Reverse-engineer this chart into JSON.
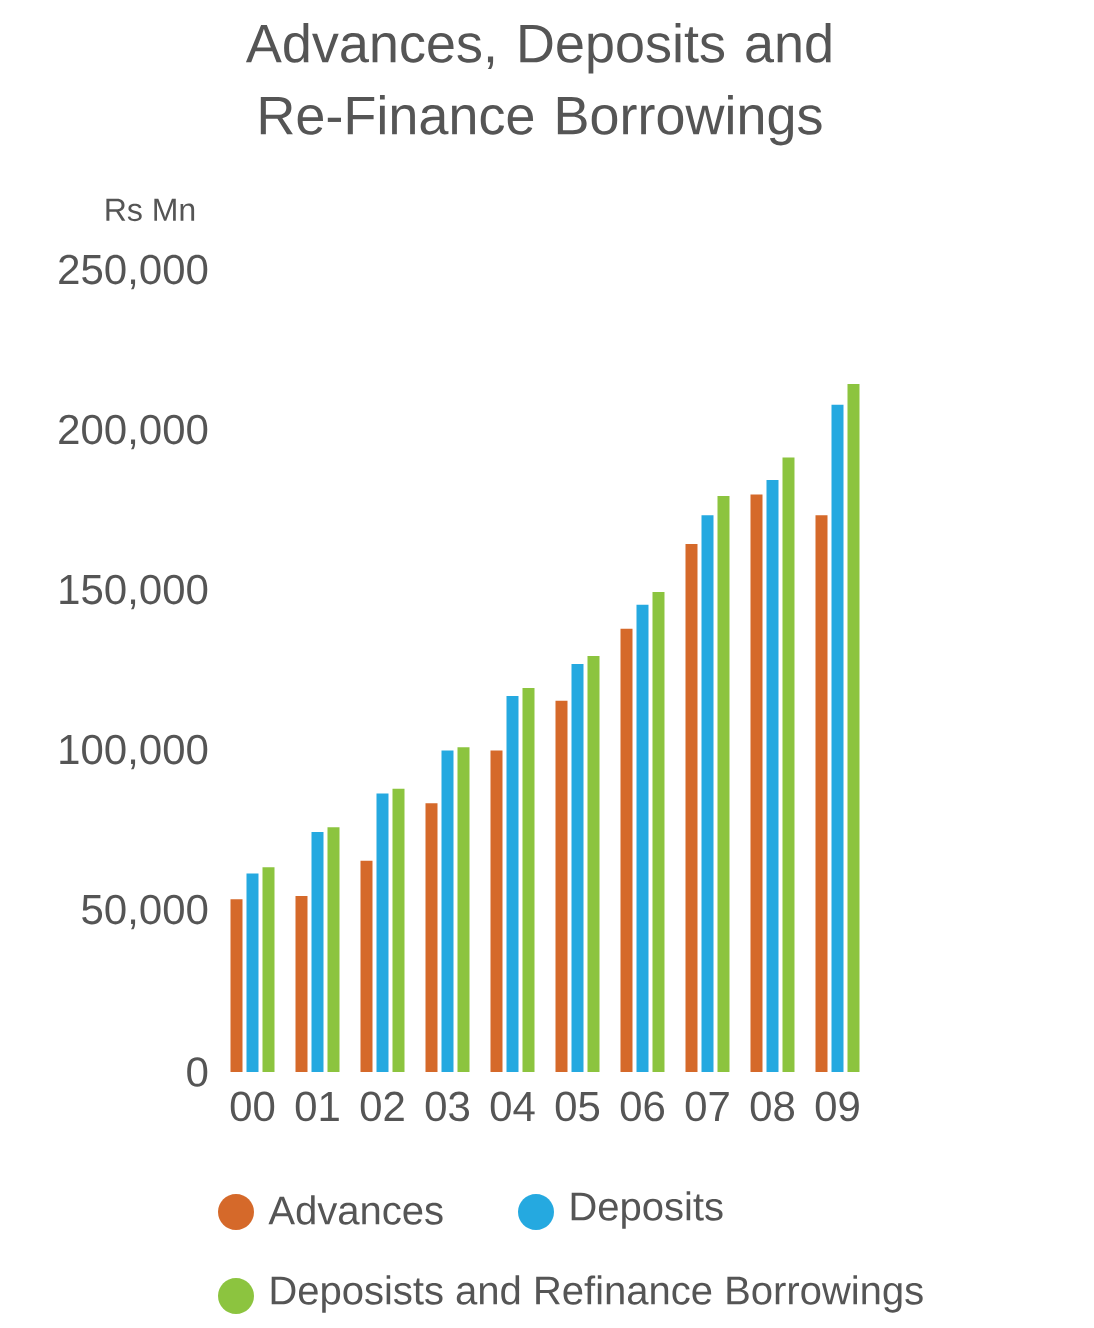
{
  "chart_data": {
    "type": "bar",
    "title": "Advances, Deposits and Re-Finance Borrowings",
    "ylabel": "Rs Mn",
    "categories": [
      "00",
      "01",
      "02",
      "03",
      "04",
      "05",
      "06",
      "07",
      "08",
      "09"
    ],
    "series": [
      {
        "name": "Advances",
        "color": "#d5692a",
        "values": [
          54000,
          55000,
          66000,
          84000,
          100500,
          116000,
          138500,
          165000,
          180500,
          174000
        ]
      },
      {
        "name": "Deposits",
        "color": "#25a9e0",
        "values": [
          62000,
          75000,
          87000,
          100500,
          117500,
          127500,
          146000,
          174000,
          185000,
          208500
        ]
      },
      {
        "name": "Deposists and Refinance Borrowings",
        "color": "#8cc43f",
        "values": [
          64000,
          76500,
          88500,
          101500,
          120000,
          130000,
          150000,
          180000,
          192000,
          215000
        ]
      }
    ],
    "ylim": [
      0,
      250000
    ],
    "yticks": [
      0,
      {
        "value": 50000,
        "label": "50,000"
      },
      {
        "value": 100000,
        "label": "100,000"
      },
      {
        "value": 150000,
        "label": "150,000"
      },
      {
        "value": 200000,
        "label": "200,000"
      },
      {
        "value": 250000,
        "label": "250,000"
      }
    ],
    "grid": false,
    "legend": "bottom"
  }
}
